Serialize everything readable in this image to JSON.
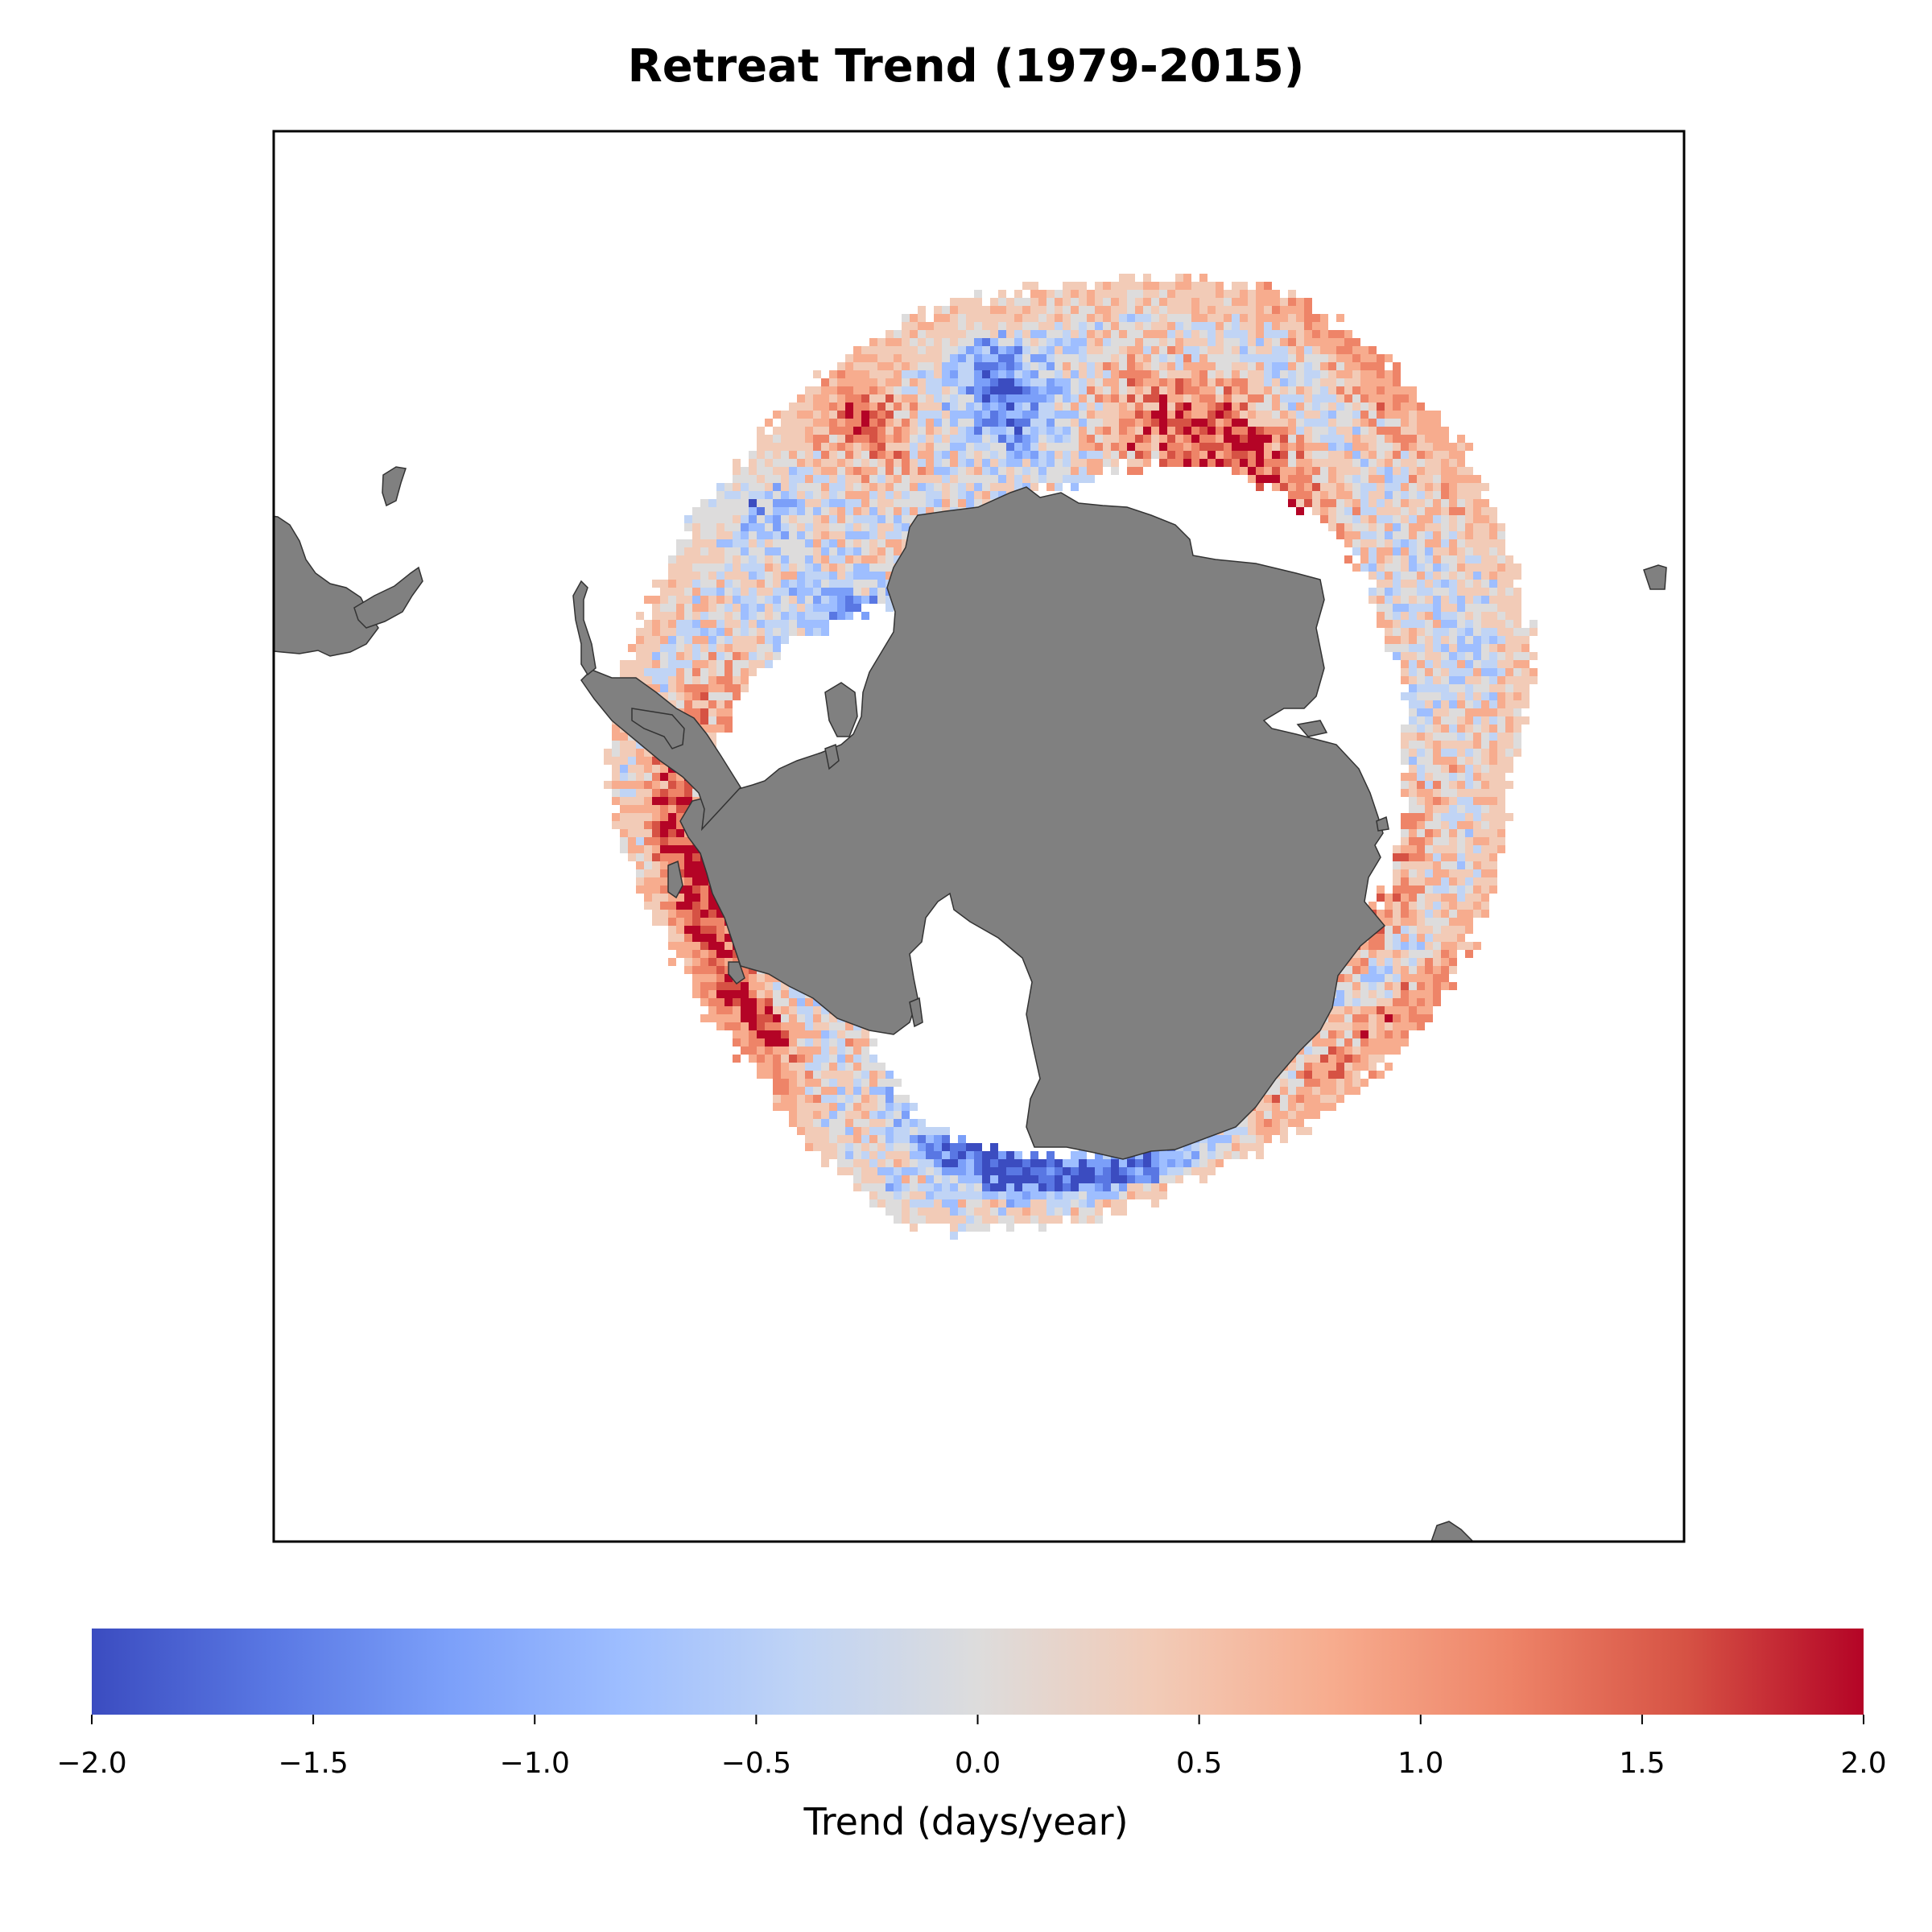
{
  "title": "Retreat Trend (1979-2015)",
  "colorbar": {
    "label": "Trend (days/year)",
    "min": -2.0,
    "max": 2.0,
    "ticks": [
      "−2.0",
      "−1.5",
      "−1.0",
      "−0.5",
      "0.0",
      "0.5",
      "1.0",
      "1.5",
      "2.0"
    ],
    "tick_values": [
      -2.0,
      -1.5,
      -1.0,
      -0.5,
      0.0,
      0.5,
      1.0,
      1.5,
      2.0
    ],
    "colormap": "coolwarm",
    "colors": [
      "#3b4cc0",
      "#5977e3",
      "#7b9ff9",
      "#9ebeff",
      "#c0d4f5",
      "#dddcdc",
      "#f2cbb7",
      "#f7ac8e",
      "#ee8468",
      "#d65244",
      "#b40426"
    ]
  },
  "map": {
    "projection": "south-polar-stereographic",
    "land_color": "#808080",
    "ocean_color": "#ffffff"
  }
}
